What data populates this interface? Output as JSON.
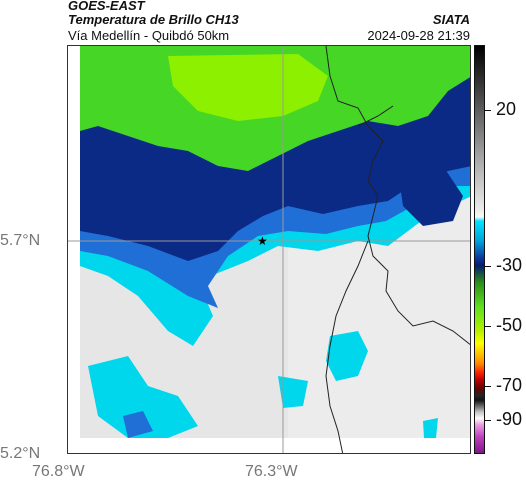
{
  "header": {
    "source": "GOES-EAST",
    "product": "Temperatura de Brillo CH13",
    "subtitle": "Vía Medellín - Quibdó 50km",
    "org": "SIATA",
    "timestamp": "2024-09-28 21:39"
  },
  "map": {
    "lat_labels": [
      "5.7°N",
      "5.2°N"
    ],
    "lon_labels": [
      "76.8°W",
      "76.3°W"
    ],
    "marker": "star-marker",
    "colors": {
      "green": "#46d626",
      "bright_green": "#8cf000",
      "dark_blue": "#0a2a86",
      "mid_blue": "#1f6fd6",
      "cyan": "#00d6ec",
      "light_gray": "#e6e6e6"
    }
  },
  "colorbar": {
    "labels": [
      "20",
      "-30",
      "-50",
      "-70",
      "-90"
    ]
  }
}
